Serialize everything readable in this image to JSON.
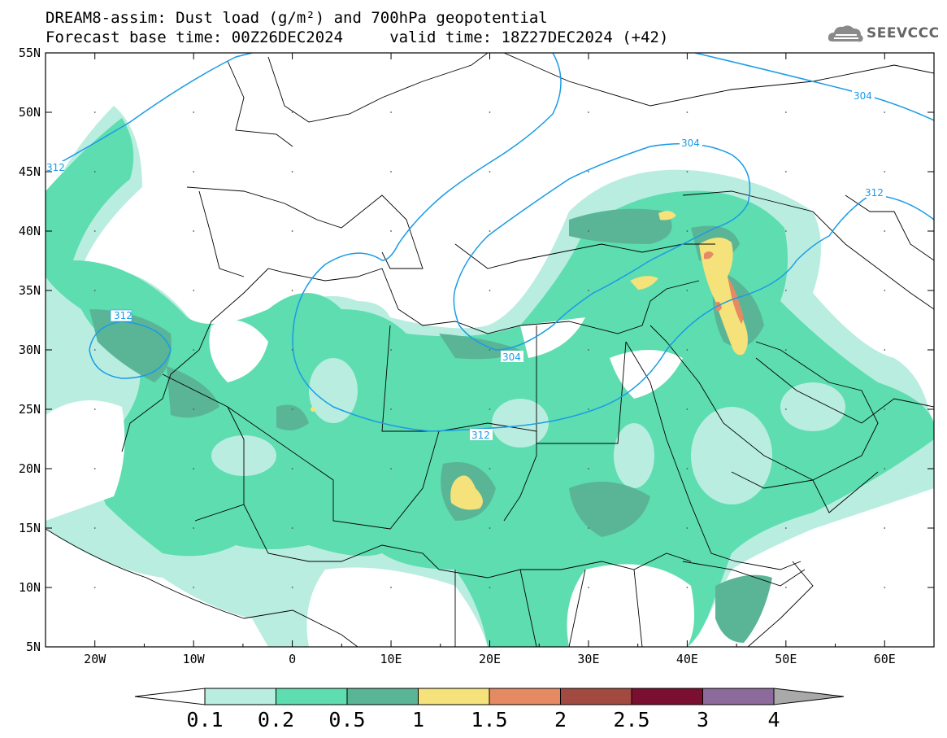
{
  "header": {
    "title_line1": "DREAM8-assim: Dust load (g/m²) and 700hPa geopotential",
    "title_line2": "Forecast base time: 00Z26DEC2024     valid time: 18Z27DEC2024 (+42)",
    "logo_text": "SEEVCCC"
  },
  "map": {
    "lon_range": [
      -25,
      65
    ],
    "lat_range": [
      5,
      55
    ],
    "lon_ticks": [
      "20W",
      "10W",
      "0",
      "10E",
      "20E",
      "30E",
      "40E",
      "50E",
      "60E"
    ],
    "lat_ticks": [
      "55N",
      "50N",
      "45N",
      "40N",
      "35N",
      "30N",
      "25N",
      "20N",
      "15N",
      "10N",
      "5N"
    ],
    "geopotential_labels": [
      "312",
      "312",
      "304",
      "312",
      "304",
      "304",
      "312"
    ]
  },
  "colorbar": {
    "levels": [
      "0.1",
      "0.2",
      "0.5",
      "1",
      "1.5",
      "2",
      "2.5",
      "3",
      "4"
    ],
    "colors": [
      "#b9ede0",
      "#5dddb0",
      "#5ab597",
      "#f5e27a",
      "#e58a62",
      "#a24a40",
      "#7a0f2f",
      "#8c6a9b"
    ],
    "under_color": "#ffffff",
    "over_color": "#a9a9a9"
  },
  "colors": {
    "contour": "#1a9be6",
    "dust_low": "#b9ede0",
    "dust_mid": "#5dddb0",
    "dust_high": "#5ab597",
    "dust_peak": "#f5e27a",
    "dust_max": "#e58a62"
  }
}
